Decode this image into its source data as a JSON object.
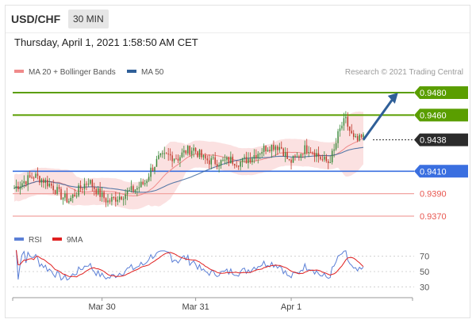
{
  "header": {
    "symbol": "USD/CHF",
    "interval": "30 MIN",
    "timestamp": "Thursday, April 1, 2021 1:58:50 AM CET"
  },
  "colors": {
    "resistance": "#5a9e00",
    "support": "#3a6fe0",
    "pivot_dark": "#2b2b2b",
    "secondary": "#e8554e",
    "arrow": "#2f5f98",
    "candle_up": "#3a8a3a",
    "candle_down": "#c0392b",
    "band_fill": "#f7c9c9",
    "rsi_line": "#5b7fd6",
    "ma9_line": "#e02020"
  },
  "chart_data": [
    {
      "type": "candlestick",
      "legend": [
        {
          "label": "MA 20 + Bollinger Bands",
          "color": "#f08a8a"
        },
        {
          "label": "MA 50",
          "color": "#2f5f98"
        }
      ],
      "watermark": "Research © 2021 Trading Central",
      "ylim": [
        0.9358,
        0.9492
      ],
      "levels": [
        {
          "value": 0.948,
          "label": "0.9480",
          "kind": "resistance"
        },
        {
          "value": 0.946,
          "label": "0.9460",
          "kind": "resistance"
        },
        {
          "value": 0.9438,
          "label": "0.9438",
          "kind": "pivot"
        },
        {
          "value": 0.941,
          "label": "0.9410",
          "kind": "support"
        },
        {
          "value": 0.939,
          "label": "0.9390",
          "kind": "secondary"
        },
        {
          "value": 0.937,
          "label": "0.9370",
          "kind": "secondary"
        }
      ],
      "anchors": [
        [
          0,
          0.9395
        ],
        [
          5,
          0.9401
        ],
        [
          10,
          0.9406
        ],
        [
          15,
          0.9402
        ],
        [
          20,
          0.9396
        ],
        [
          24,
          0.9388
        ],
        [
          28,
          0.9384
        ],
        [
          33,
          0.9393
        ],
        [
          38,
          0.9402
        ],
        [
          43,
          0.9391
        ],
        [
          48,
          0.9383
        ],
        [
          53,
          0.9387
        ],
        [
          58,
          0.9391
        ],
        [
          63,
          0.9395
        ],
        [
          67,
          0.94
        ],
        [
          70,
          0.9411
        ],
        [
          74,
          0.9421
        ],
        [
          79,
          0.9424
        ],
        [
          84,
          0.9422
        ],
        [
          88,
          0.9428
        ],
        [
          92,
          0.943
        ],
        [
          97,
          0.9421
        ],
        [
          101,
          0.9419
        ],
        [
          106,
          0.9418
        ],
        [
          111,
          0.942
        ],
        [
          116,
          0.9418
        ],
        [
          121,
          0.9422
        ],
        [
          126,
          0.9428
        ],
        [
          130,
          0.9432
        ],
        [
          134,
          0.9433
        ],
        [
          137,
          0.9431
        ],
        [
          141,
          0.9418
        ],
        [
          145,
          0.9422
        ],
        [
          148,
          0.9429
        ],
        [
          151,
          0.9431
        ],
        [
          154,
          0.9427
        ],
        [
          158,
          0.942
        ],
        [
          161,
          0.9418
        ],
        [
          164,
          0.9428
        ],
        [
          166,
          0.9442
        ],
        [
          168,
          0.9451
        ],
        [
          170,
          0.9455
        ],
        [
          172,
          0.9446
        ],
        [
          174,
          0.9438
        ],
        [
          176,
          0.9437
        ],
        [
          179,
          0.944
        ]
      ],
      "projection": {
        "from": [
          179,
          0.9438
        ],
        "to": [
          196,
          0.948
        ]
      },
      "x_ticks": [
        {
          "label": "Mar 30",
          "index": 45
        },
        {
          "label": "Mar 31",
          "index": 93
        },
        {
          "label": "Apr 1",
          "index": 142
        }
      ]
    },
    {
      "type": "line",
      "legend": [
        {
          "label": "RSI",
          "color": "#5b7fd6"
        },
        {
          "label": "9MA",
          "color": "#e02020"
        }
      ],
      "ylim": [
        20,
        80
      ],
      "y_ticks": [
        "70",
        "50",
        "30"
      ],
      "y_tick_values": [
        70,
        50,
        30
      ]
    }
  ]
}
